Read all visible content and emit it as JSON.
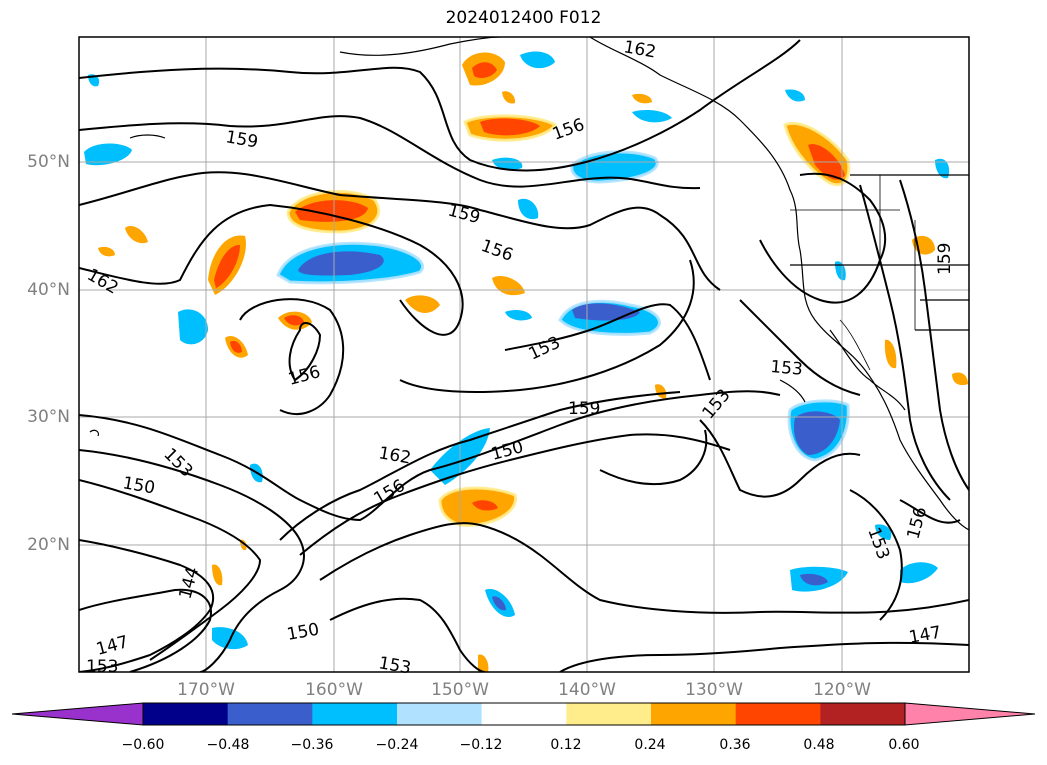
{
  "title": "2024012400 F012",
  "axes": {
    "lon_ticks": [
      "170°W",
      "160°W",
      "150°W",
      "140°W",
      "130°W",
      "120°W"
    ],
    "lat_ticks": [
      "50°N",
      "40°N",
      "30°N",
      "20°N"
    ]
  },
  "contour_labels": [
    "162",
    "159",
    "156",
    "159",
    "156",
    "162",
    "156",
    "153",
    "159",
    "153",
    "153",
    "153",
    "150",
    "162",
    "150",
    "156",
    "144",
    "147",
    "150",
    "153",
    "153",
    "147",
    "153",
    "156",
    "159"
  ],
  "colorbar": {
    "ticks": [
      "−0.60",
      "−0.48",
      "−0.36",
      "−0.24",
      "−0.12",
      "0.12",
      "0.24",
      "0.36",
      "0.48",
      "0.60"
    ],
    "colors": [
      "#9932cc",
      "#00008b",
      "#3a5fcd",
      "#00bfff",
      "#b0e2ff",
      "#ffffff",
      "#ffec8b",
      "#ffa500",
      "#ff4500",
      "#b22222",
      "#ff82ab"
    ]
  }
}
